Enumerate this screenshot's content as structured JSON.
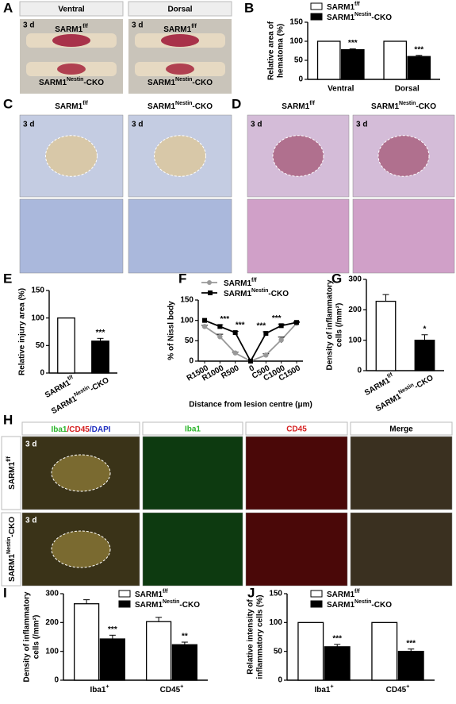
{
  "panels": {
    "A": {
      "label": "A",
      "headers": [
        "Ventral",
        "Dorsal"
      ],
      "time": "3 d",
      "rows": [
        [
          "SARM1",
          "f/f"
        ],
        [
          "SARM1",
          "Nestin",
          "-CKO"
        ]
      ]
    },
    "C": {
      "label": "C",
      "headers": [
        [
          "SARM1",
          "f/f"
        ],
        [
          "SARM1",
          "Nestin",
          "-CKO"
        ]
      ],
      "time": "3 d"
    },
    "D": {
      "label": "D",
      "headers": [
        [
          "SARM1",
          "f/f"
        ],
        [
          "SARM1",
          "Nestin",
          "-CKO"
        ]
      ],
      "time": "3 d"
    },
    "H": {
      "label": "H",
      "headers": [
        [
          "Iba1",
          "/CD45",
          "/DAPI"
        ],
        "Iba1",
        "CD45",
        "Merge"
      ],
      "rows": [
        [
          "SARM1",
          "f/f"
        ],
        [
          "SARM1",
          "Nestin",
          "-CKO"
        ]
      ],
      "time": "3 d"
    }
  },
  "chart_data": [
    {
      "panel": "B",
      "type": "bar",
      "ylabel": [
        "Relative area of",
        "hematoma (%)"
      ],
      "categories": [
        "Ventral",
        "Dorsal"
      ],
      "series": [
        {
          "name": [
            "SARM1",
            "f/f"
          ],
          "color": "#ffffff",
          "values": [
            100,
            100
          ],
          "errors": [
            0,
            0
          ],
          "significance": [
            null,
            null
          ]
        },
        {
          "name": [
            "SARM1",
            "Nestin",
            "-CKO"
          ],
          "color": "#000000",
          "values": [
            78,
            60
          ],
          "errors": [
            2,
            3
          ],
          "significance": [
            "***",
            "***"
          ]
        }
      ],
      "ylim": [
        0,
        150
      ],
      "yticks": [
        0,
        50,
        100,
        150
      ]
    },
    {
      "panel": "E",
      "type": "bar",
      "ylabel": [
        "Relative injury area (%)"
      ],
      "categories": [
        [
          "SARM1",
          "f/f"
        ],
        [
          "SARM1",
          "Nestin",
          "-CKO"
        ]
      ],
      "values": [
        100,
        58
      ],
      "colors": [
        "#ffffff",
        "#000000"
      ],
      "errors": [
        0,
        5
      ],
      "significance": [
        null,
        "***"
      ],
      "ylim": [
        0,
        150
      ],
      "yticks": [
        0,
        50,
        100,
        150
      ]
    },
    {
      "panel": "F",
      "type": "line",
      "ylabel": [
        "% of Nissl body"
      ],
      "xlabel": "Distance from lesion centre (μm)",
      "categories": [
        "R1500",
        "R1000",
        "R500",
        "0",
        "C500",
        "C1000",
        "C1500"
      ],
      "series": [
        {
          "name": [
            "SARM1",
            "f/f"
          ],
          "color": "#999999",
          "marker": "circle",
          "values": [
            85,
            60,
            20,
            0,
            15,
            52,
            93
          ],
          "errors": [
            3,
            6,
            2,
            0,
            3,
            7,
            2
          ]
        },
        {
          "name": [
            "SARM1",
            "Nestin",
            "-CKO"
          ],
          "color": "#000000",
          "marker": "square",
          "values": [
            100,
            85,
            70,
            0,
            68,
            87,
            95
          ],
          "errors": [
            0,
            4,
            3,
            0,
            4,
            4,
            2
          ]
        }
      ],
      "significance": [
        null,
        "***",
        "***",
        null,
        "***",
        "***",
        null
      ],
      "ylim": [
        0,
        150
      ],
      "yticks": [
        0,
        50,
        100,
        150
      ]
    },
    {
      "panel": "G",
      "type": "bar",
      "ylabel": [
        "Density of inflammatory",
        "cells (/mm²)"
      ],
      "categories": [
        [
          "SARM1",
          "f/f"
        ],
        [
          "SARM1",
          "Nestin",
          "-CKO"
        ]
      ],
      "values": [
        228,
        100
      ],
      "colors": [
        "#ffffff",
        "#000000"
      ],
      "errors": [
        22,
        18
      ],
      "significance": [
        null,
        "*"
      ],
      "ylim": [
        0,
        300
      ],
      "yticks": [
        0,
        100,
        200,
        300
      ]
    },
    {
      "panel": "I",
      "type": "bar",
      "ylabel": [
        "Density of inflammatory",
        "cells (/mm²)"
      ],
      "categories": [
        [
          "Iba1",
          "+"
        ],
        [
          "CD45",
          "+"
        ]
      ],
      "series": [
        {
          "name": [
            "SARM1",
            "f/f"
          ],
          "color": "#ffffff",
          "values": [
            265,
            203
          ],
          "errors": [
            14,
            15
          ],
          "significance": [
            null,
            null
          ]
        },
        {
          "name": [
            "SARM1",
            "Nestin",
            "-CKO"
          ],
          "color": "#000000",
          "values": [
            143,
            123
          ],
          "errors": [
            13,
            9
          ],
          "significance": [
            "***",
            "**"
          ]
        }
      ],
      "ylim": [
        0,
        300
      ],
      "yticks": [
        0,
        100,
        200,
        300
      ]
    },
    {
      "panel": "J",
      "type": "bar",
      "ylabel": [
        "Relative intensity of",
        "inflammatory cells (%)"
      ],
      "categories": [
        [
          "Iba1",
          "+"
        ],
        [
          "CD45",
          "+"
        ]
      ],
      "series": [
        {
          "name": [
            "SARM1",
            "f/f"
          ],
          "color": "#ffffff",
          "values": [
            100,
            100
          ],
          "errors": [
            0,
            0
          ],
          "significance": [
            null,
            null
          ]
        },
        {
          "name": [
            "SARM1",
            "Nestin",
            "-CKO"
          ],
          "color": "#000000",
          "values": [
            58,
            50
          ],
          "errors": [
            4,
            4
          ],
          "significance": [
            "***",
            "***"
          ]
        }
      ],
      "ylim": [
        0,
        150
      ],
      "yticks": [
        0,
        50,
        100,
        150
      ]
    }
  ]
}
